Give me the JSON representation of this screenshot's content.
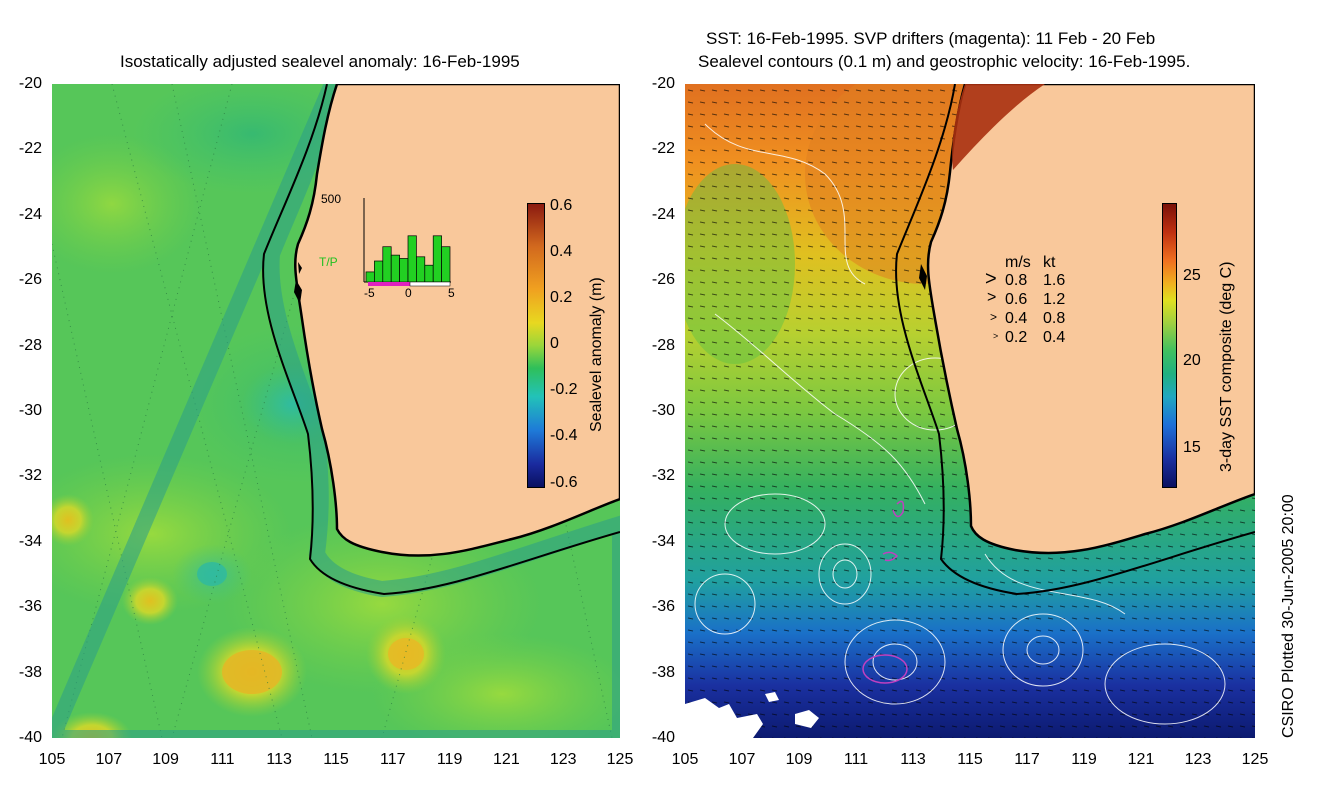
{
  "left_panel": {
    "title": "Isostatically adjusted sealevel anomaly: 16-Feb-1995",
    "colorbar": {
      "label": "Sealevel anomaly (m)",
      "ticks": [
        "0.6",
        "0.4",
        "0.2",
        "0",
        "-0.2",
        "-0.4",
        "-0.6"
      ]
    },
    "inset": {
      "label": "T/P",
      "ymax": "500",
      "xticks": [
        "-5",
        "0",
        "5"
      ],
      "bars": [
        0.12,
        0.25,
        0.42,
        0.32,
        0.28,
        0.55,
        0.3,
        0.2,
        0.55,
        0.42
      ]
    }
  },
  "right_panel": {
    "title_line1": "SST: 16-Feb-1995. SVP drifters (magenta): 11 Feb - 20 Feb",
    "title_line2": "Sealevel contours (0.1 m) and geostrophic velocity: 16-Feb-1995.",
    "colorbar": {
      "label": "3-day SST composite (deg C)",
      "ticks": [
        "25",
        "20",
        "15"
      ]
    },
    "velocity_legend": {
      "header_ms": "m/s",
      "header_kt": "kt",
      "rows": [
        {
          "ms": "0.8",
          "kt": "1.6"
        },
        {
          "ms": "0.6",
          "kt": "1.2"
        },
        {
          "ms": "0.4",
          "kt": "0.8"
        },
        {
          "ms": "0.2",
          "kt": "0.4"
        }
      ]
    }
  },
  "axes": {
    "lat_ticks": [
      "-20",
      "-22",
      "-24",
      "-26",
      "-28",
      "-30",
      "-32",
      "-34",
      "-36",
      "-38",
      "-40"
    ],
    "lon_ticks": [
      "105",
      "107",
      "109",
      "111",
      "113",
      "115",
      "117",
      "119",
      "121",
      "123",
      "125"
    ]
  },
  "footer": "CSIRO Plotted 30-Jun-2005 20:00",
  "colors": {
    "land": "#f9c89b",
    "ocean_left": "#46c45a",
    "coast": "#000000"
  }
}
